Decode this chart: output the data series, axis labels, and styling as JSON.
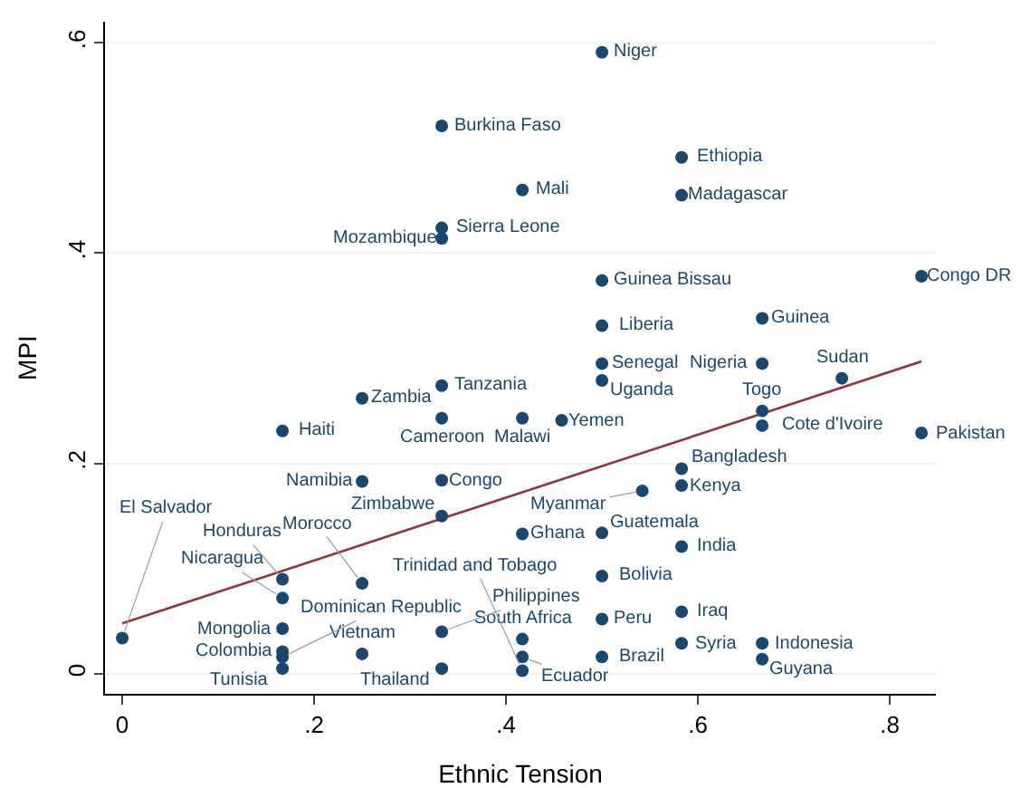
{
  "chart_data": {
    "type": "scatter",
    "xlabel": "Ethnic Tension",
    "ylabel": "MPI",
    "xlim": [
      -0.018,
      0.848
    ],
    "xticks": [
      {
        "value": 0,
        "label": "0"
      },
      {
        "value": 0.2,
        "label": ".2"
      },
      {
        "value": 0.4,
        "label": ".4"
      },
      {
        "value": 0.6,
        "label": ".6"
      },
      {
        "value": 0.8,
        "label": ".8"
      }
    ],
    "ylim": [
      -0.019,
      0.62
    ],
    "yticks": [
      {
        "value": 0,
        "label": "0"
      },
      {
        "value": 0.2,
        "label": ".2"
      },
      {
        "value": 0.4,
        "label": ".4"
      },
      {
        "value": 0.6,
        "label": ".6"
      }
    ],
    "grid": "y",
    "series": [
      {
        "marker": "circle",
        "color": "#1a476f",
        "x": [
          0,
          0.167,
          0.167,
          0.25,
          0.167,
          0.167,
          0.167,
          0.25,
          0.167,
          0.167,
          0.25,
          0.25,
          0.333,
          0.333,
          0.417,
          0.458,
          0.333,
          0.333,
          0.417,
          0.5,
          0.5,
          0.5,
          0.5,
          0.583,
          0.583,
          0.583,
          0.667,
          0.667,
          0.333,
          0.333,
          0.417,
          0.417,
          0.417,
          0.583,
          0.583,
          0.542,
          0.667,
          0.667,
          0.667,
          0.667,
          0.75,
          0.833,
          0.833,
          0.5,
          0.5,
          0.5,
          0.5,
          0.5,
          0.333,
          0.583,
          0.417,
          0.583,
          0.333,
          0.333
        ],
        "values": [
          0.034,
          0.09,
          0.072,
          0.086,
          0.043,
          0.021,
          0.016,
          0.019,
          0.005,
          0.231,
          0.262,
          0.183,
          0.274,
          0.243,
          0.243,
          0.241,
          0.184,
          0.15,
          0.133,
          0.134,
          0.093,
          0.052,
          0.016,
          0.121,
          0.059,
          0.029,
          0.029,
          0.014,
          0.04,
          0.005,
          0.033,
          0.016,
          0.003,
          0.179,
          0.195,
          0.174,
          0.25,
          0.236,
          0.295,
          0.338,
          0.281,
          0.229,
          0.378,
          0.374,
          0.331,
          0.295,
          0.279,
          0.591,
          0.521,
          0.491,
          0.46,
          0.455,
          0.424,
          0.414
        ],
        "value_labels": [
          "El Salvador",
          "Honduras",
          "Nicaragua",
          "Morocco",
          "Mongolia",
          "Colombia",
          "Dominican Republic",
          "Vietnam",
          "Tunisia",
          "Haiti",
          "Zambia",
          "Namibia",
          "Tanzania",
          "Cameroon",
          "Malawi",
          "Yemen",
          "Congo",
          "Zimbabwe",
          "Ghana",
          "Guatemala",
          "Bolivia",
          "Peru",
          "Brazil",
          "India",
          "Iraq",
          "Syria",
          "Indonesia",
          "Guyana",
          "Philippines",
          "Thailand",
          "South Africa",
          "Ecuador",
          "Trinidad and Tobago",
          "Kenya",
          "Bangladesh",
          "Myanmar",
          "Togo",
          "Cote d'Ivoire",
          "Nigeria",
          "Guinea",
          "Sudan",
          "Pakistan",
          "Congo DR",
          "Guinea Bissau",
          "Liberia",
          "Senegal",
          "Uganda",
          "Niger",
          "Burkina Faso",
          "Ethiopia",
          "Mali",
          "Madagascar",
          "Sierra Leone",
          "Mozambique"
        ]
      },
      {
        "type": "line",
        "color": "#90353b",
        "x": [
          0,
          0.833
        ],
        "values": [
          0.048,
          0.297
        ]
      }
    ]
  }
}
